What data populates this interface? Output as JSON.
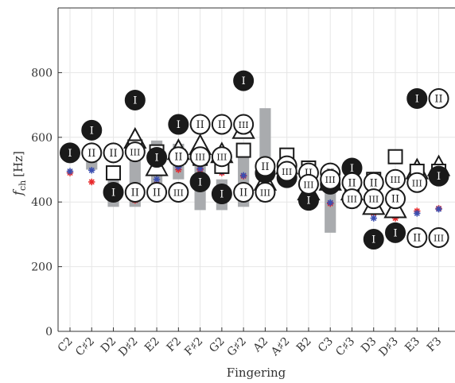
{
  "chart_data": {
    "type": "scatter",
    "xlabel": "Fingering",
    "ylabel": "f_ch [Hz]",
    "ylabel_main": "f",
    "ylabel_sub": "ch",
    "ylabel_unit": "[Hz]",
    "ylim": [
      0,
      1000
    ],
    "yticks": [
      0,
      200,
      400,
      600,
      800
    ],
    "grid": true,
    "categories": [
      "C2",
      "C♯2",
      "D2",
      "D♯2",
      "E2",
      "F2",
      "F♯2",
      "G2",
      "G♯2",
      "A2",
      "A♯2",
      "B2",
      "C3",
      "C♯3",
      "D3",
      "D♯3",
      "E3",
      "F3"
    ],
    "bars": [
      {
        "x": "C♯2",
        "low": 500,
        "high": 560
      },
      {
        "x": "D2",
        "low": 385,
        "high": 500
      },
      {
        "x": "D♯2",
        "low": 385,
        "high": 600
      },
      {
        "x": "E2",
        "low": 450,
        "high": 590
      },
      {
        "x": "F2",
        "low": 470,
        "high": 580
      },
      {
        "x": "F♯2",
        "low": 375,
        "high": 560
      },
      {
        "x": "G2",
        "low": 375,
        "high": 470
      },
      {
        "x": "G♯2",
        "low": 385,
        "high": 580
      },
      {
        "x": "A2",
        "low": 400,
        "high": 690
      },
      {
        "x": "B2",
        "low": 380,
        "high": 480
      },
      {
        "x": "C3",
        "low": 305,
        "high": 470
      },
      {
        "x": "C♯3",
        "low": 380,
        "high": 490
      }
    ],
    "series": [
      {
        "marker": "filled-circle",
        "label": "I",
        "points": [
          {
            "x": "C2",
            "y": 552
          },
          {
            "x": "C♯2",
            "y": 622
          },
          {
            "x": "D2",
            "y": 430
          },
          {
            "x": "D♯2",
            "y": 715
          },
          {
            "x": "E2",
            "y": 538
          },
          {
            "x": "F2",
            "y": 640
          },
          {
            "x": "F♯2",
            "y": 462
          },
          {
            "x": "G2",
            "y": 425
          },
          {
            "x": "G♯2",
            "y": 775
          },
          {
            "x": "A2",
            "y": 490
          },
          {
            "x": "A♯2",
            "y": 475
          },
          {
            "x": "B2",
            "y": 405
          },
          {
            "x": "C3",
            "y": 455
          },
          {
            "x": "C♯3",
            "y": 505
          },
          {
            "x": "D3",
            "y": 285
          },
          {
            "x": "D♯3",
            "y": 305
          },
          {
            "x": "E3",
            "y": 720
          },
          {
            "x": "F3",
            "y": 480
          }
        ]
      },
      {
        "marker": "open-circle",
        "label": "II",
        "points": [
          {
            "x": "C♯2",
            "y": 552
          },
          {
            "x": "D2",
            "y": 552
          },
          {
            "x": "D♯2",
            "y": 430
          },
          {
            "x": "E2",
            "y": 430
          },
          {
            "x": "F2",
            "y": 540
          },
          {
            "x": "F♯2",
            "y": 640
          },
          {
            "x": "G2",
            "y": 640
          },
          {
            "x": "G♯2",
            "y": 430
          },
          {
            "x": "A2",
            "y": 510
          },
          {
            "x": "A♯2",
            "y": 512
          },
          {
            "x": "B2",
            "y": 490
          },
          {
            "x": "C3",
            "y": 490
          },
          {
            "x": "C♯3",
            "y": 460
          },
          {
            "x": "D3",
            "y": 460
          },
          {
            "x": "D♯3",
            "y": 410
          },
          {
            "x": "E3",
            "y": 290
          },
          {
            "x": "F3",
            "y": 720
          }
        ]
      },
      {
        "marker": "open-circle",
        "label": "III",
        "points": [
          {
            "x": "D♯2",
            "y": 555
          },
          {
            "x": "F2",
            "y": 430
          },
          {
            "x": "F♯2",
            "y": 540
          },
          {
            "x": "G2",
            "y": 540
          },
          {
            "x": "G♯2",
            "y": 640
          },
          {
            "x": "A2",
            "y": 430
          },
          {
            "x": "A♯2",
            "y": 495
          },
          {
            "x": "B2",
            "y": 455
          },
          {
            "x": "C3",
            "y": 470
          },
          {
            "x": "C♯3",
            "y": 410
          },
          {
            "x": "D3",
            "y": 410
          },
          {
            "x": "D♯3",
            "y": 470
          },
          {
            "x": "E3",
            "y": 460
          },
          {
            "x": "F3",
            "y": 290
          }
        ]
      },
      {
        "marker": "open-triangle",
        "points": [
          {
            "x": "D♯2",
            "y": 590
          },
          {
            "x": "E2",
            "y": 505
          },
          {
            "x": "F2",
            "y": 555
          },
          {
            "x": "F♯2",
            "y": 570
          },
          {
            "x": "G2",
            "y": 545
          },
          {
            "x": "G♯2",
            "y": 620
          },
          {
            "x": "A2",
            "y": 460
          },
          {
            "x": "A♯2",
            "y": 510
          },
          {
            "x": "B2",
            "y": 430
          },
          {
            "x": "C3",
            "y": 460
          },
          {
            "x": "C♯3",
            "y": 430
          },
          {
            "x": "D3",
            "y": 385
          },
          {
            "x": "D♯3",
            "y": 375
          },
          {
            "x": "E3",
            "y": 495
          },
          {
            "x": "F3",
            "y": 505
          }
        ]
      },
      {
        "marker": "open-square",
        "points": [
          {
            "x": "D2",
            "y": 490
          },
          {
            "x": "D♯2",
            "y": 570
          },
          {
            "x": "E2",
            "y": 555
          },
          {
            "x": "F2",
            "y": 540
          },
          {
            "x": "F♯2",
            "y": 535
          },
          {
            "x": "G2",
            "y": 510
          },
          {
            "x": "G♯2",
            "y": 560
          },
          {
            "x": "A2",
            "y": 495
          },
          {
            "x": "A♯2",
            "y": 545
          },
          {
            "x": "B2",
            "y": 505
          },
          {
            "x": "C3",
            "y": 475
          },
          {
            "x": "C♯3",
            "y": 445
          },
          {
            "x": "D3",
            "y": 470
          },
          {
            "x": "D♯3",
            "y": 540
          },
          {
            "x": "E3",
            "y": 495
          },
          {
            "x": "F3",
            "y": 495
          }
        ]
      },
      {
        "marker": "asterisk",
        "color": "#e8292b",
        "points": [
          {
            "x": "C2",
            "y": 490
          },
          {
            "x": "C♯2",
            "y": 462
          },
          {
            "x": "D2",
            "y": 410
          },
          {
            "x": "D♯2",
            "y": 405
          },
          {
            "x": "E2",
            "y": 455
          },
          {
            "x": "F2",
            "y": 500
          },
          {
            "x": "F♯2",
            "y": 500
          },
          {
            "x": "G2",
            "y": 490
          },
          {
            "x": "G♯2",
            "y": 480
          },
          {
            "x": "A2",
            "y": 440
          },
          {
            "x": "A♯2",
            "y": 455
          },
          {
            "x": "B2",
            "y": 400
          },
          {
            "x": "C3",
            "y": 395
          },
          {
            "x": "C♯3",
            "y": 395
          },
          {
            "x": "D3",
            "y": 365
          },
          {
            "x": "D♯3",
            "y": 350
          },
          {
            "x": "E3",
            "y": 372
          },
          {
            "x": "F3",
            "y": 380
          }
        ]
      },
      {
        "marker": "asterisk",
        "color": "#3b4fb0",
        "points": [
          {
            "x": "C2",
            "y": 495
          },
          {
            "x": "C♯2",
            "y": 498
          },
          {
            "x": "D2",
            "y": 413
          },
          {
            "x": "D♯2",
            "y": 413
          },
          {
            "x": "E2",
            "y": 470
          },
          {
            "x": "F2",
            "y": 508
          },
          {
            "x": "F♯2",
            "y": 503
          },
          {
            "x": "G2",
            "y": 495
          },
          {
            "x": "G♯2",
            "y": 482
          },
          {
            "x": "A2",
            "y": 455
          },
          {
            "x": "A♯2",
            "y": 468
          },
          {
            "x": "B2",
            "y": 398
          },
          {
            "x": "C3",
            "y": 398
          },
          {
            "x": "C♯3",
            "y": 398
          },
          {
            "x": "D3",
            "y": 350
          },
          {
            "x": "D♯3",
            "y": 325
          },
          {
            "x": "E3",
            "y": 365
          },
          {
            "x": "F3",
            "y": 378
          }
        ]
      }
    ],
    "colors": {
      "bar": "#a9abae",
      "grid": "#e6e6e6",
      "axis": "#333333",
      "marker_fill": "#1a1a1a",
      "red_asterisk": "#e8292b",
      "blue_asterisk": "#3b4fb0"
    }
  }
}
